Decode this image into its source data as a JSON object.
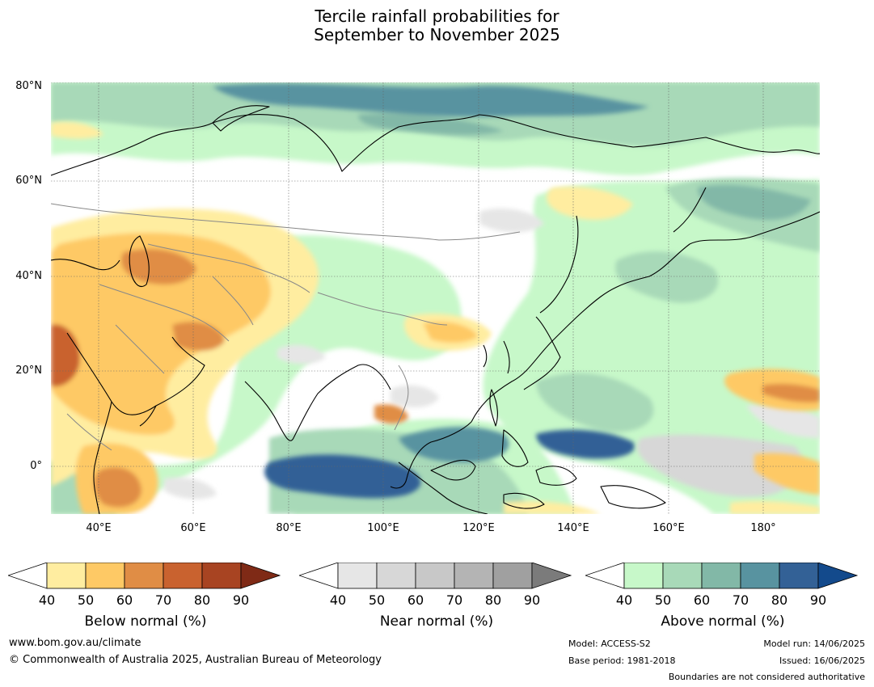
{
  "title_line1": "Tercile rainfall probabilities for",
  "title_line2": "September to November 2025",
  "lat_ticks": [
    "80°N",
    "60°N",
    "40°N",
    "20°N",
    "0°"
  ],
  "lon_ticks": [
    "40°E",
    "60°E",
    "80°E",
    "100°E",
    "120°E",
    "140°E",
    "160°E",
    "180°"
  ],
  "colorbars": [
    {
      "title": "Below normal (%)",
      "ticks": [
        "40",
        "50",
        "60",
        "70",
        "80",
        "90"
      ],
      "colors": [
        "#ffeda0",
        "#fec965",
        "#e08d45",
        "#c9622f",
        "#a84422",
        "#7f2a16"
      ]
    },
    {
      "title": "Near normal (%)",
      "ticks": [
        "40",
        "50",
        "60",
        "70",
        "80",
        "90"
      ],
      "colors": [
        "#e6e6e6",
        "#d7d7d7",
        "#c8c8c8",
        "#b4b4b4",
        "#a0a0a0",
        "#7b7b7b"
      ]
    },
    {
      "title": "Above normal (%)",
      "ticks": [
        "40",
        "50",
        "60",
        "70",
        "80",
        "90"
      ],
      "colors": [
        "#c7f8c9",
        "#a8d9b8",
        "#82b8a7",
        "#5893a0",
        "#336196",
        "#134a8c"
      ]
    }
  ],
  "footer": {
    "website": "www.bom.gov.au/climate",
    "copyright": "© Commonwealth of Australia 2025, Australian Bureau of Meteorology",
    "model": "Model: ACCESS-S2",
    "base_period": "Base period: 1981-2018",
    "model_run": "Model run: 14/06/2025",
    "issued": "Issued: 16/06/2025",
    "boundaries": "Boundaries are not considered authoritative"
  }
}
